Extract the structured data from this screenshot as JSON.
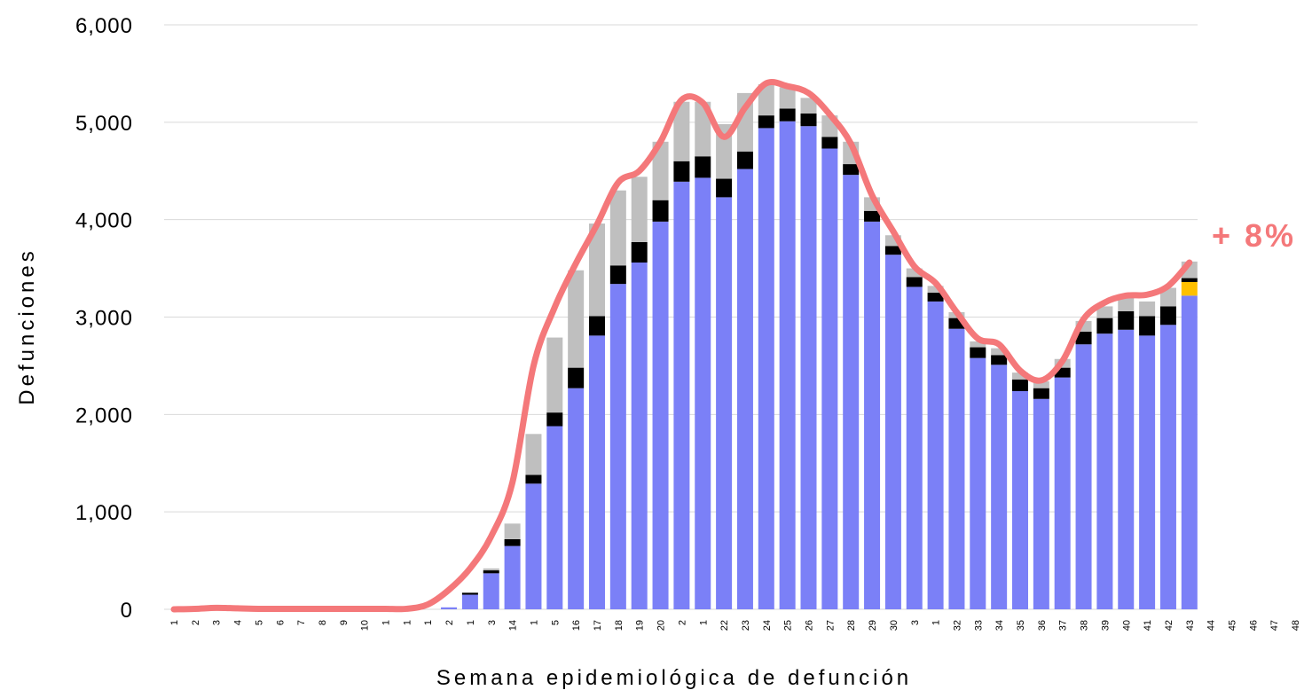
{
  "chart_data": {
    "type": "stacked_bar_line",
    "xlabel": "Semana epidemiológica de defunción",
    "ylabel": "Defunciones",
    "annotation": "+ 8%",
    "annotation_color": "#f4787a",
    "categories": [
      "1",
      "2",
      "3",
      "4",
      "5",
      "6",
      "7",
      "8",
      "9",
      "10",
      "1",
      "1",
      "1",
      "2",
      "1",
      "3",
      "14",
      "1",
      "5",
      "16",
      "17",
      "18",
      "19",
      "20",
      "2",
      "1",
      "22",
      "23",
      "24",
      "25",
      "26",
      "27",
      "28",
      "29",
      "30",
      "3",
      "1",
      "32",
      "33",
      "34",
      "35",
      "36",
      "37",
      "38",
      "39",
      "40",
      "41",
      "42",
      "43",
      "44",
      "45",
      "46",
      "47",
      "48"
    ],
    "ylim": [
      0,
      6000
    ],
    "yticks": [
      0,
      {
        "value": 1000,
        "label": "1,000"
      },
      {
        "value": 2000,
        "label": "2,000"
      },
      {
        "value": 3000,
        "label": "3,000"
      },
      {
        "value": 4000,
        "label": "4,000"
      },
      {
        "value": 5000,
        "label": "5,000"
      },
      {
        "value": 6000,
        "label": "6,000"
      }
    ],
    "grid": true,
    "series": [
      {
        "color": "#7b80f7",
        "values": [
          0,
          0,
          0,
          0,
          0,
          0,
          0,
          0,
          0,
          0,
          0,
          0,
          0,
          20,
          150,
          370,
          650,
          1290,
          1880,
          2270,
          2810,
          3340,
          3560,
          3980,
          4390,
          4430,
          4230,
          4520,
          4940,
          5010,
          4960,
          4730,
          4460,
          3980,
          3640,
          3310,
          3160,
          2880,
          2580,
          2510,
          2240,
          2160,
          2380,
          2720,
          2830,
          2870,
          2810,
          2920,
          3220,
          null,
          null,
          null,
          null,
          null
        ]
      },
      {
        "color": "#ffc000",
        "values": [
          0,
          0,
          0,
          0,
          0,
          0,
          0,
          0,
          0,
          0,
          0,
          0,
          0,
          0,
          0,
          0,
          0,
          0,
          0,
          0,
          0,
          0,
          0,
          0,
          0,
          0,
          0,
          0,
          0,
          0,
          0,
          0,
          0,
          0,
          0,
          0,
          0,
          0,
          0,
          0,
          0,
          0,
          0,
          0,
          0,
          0,
          0,
          0,
          140,
          null,
          null,
          null,
          null,
          null
        ]
      },
      {
        "color": "#000000",
        "values": [
          0,
          0,
          0,
          0,
          0,
          0,
          0,
          0,
          0,
          0,
          0,
          0,
          0,
          0,
          20,
          30,
          70,
          90,
          140,
          210,
          200,
          190,
          210,
          220,
          210,
          220,
          190,
          180,
          130,
          130,
          130,
          120,
          110,
          110,
          90,
          100,
          90,
          110,
          110,
          100,
          120,
          110,
          100,
          130,
          160,
          190,
          200,
          190,
          40,
          null,
          null,
          null,
          null,
          null
        ]
      },
      {
        "color": "#bfbfbf",
        "values": [
          0,
          0,
          0,
          0,
          0,
          0,
          0,
          0,
          0,
          0,
          0,
          0,
          0,
          0,
          0,
          20,
          160,
          420,
          770,
          1000,
          950,
          770,
          670,
          600,
          610,
          560,
          560,
          600,
          320,
          220,
          160,
          220,
          230,
          140,
          110,
          90,
          70,
          60,
          60,
          70,
          70,
          70,
          90,
          110,
          120,
          150,
          150,
          190,
          170,
          null,
          null,
          null,
          null,
          null
        ]
      }
    ],
    "line": {
      "color": "#f4787a",
      "values": [
        0,
        5,
        15,
        10,
        5,
        5,
        5,
        5,
        5,
        5,
        5,
        5,
        50,
        200,
        420,
        750,
        1300,
        2500,
        3100,
        3550,
        3950,
        4380,
        4500,
        4800,
        5230,
        5200,
        4850,
        5150,
        5400,
        5370,
        5300,
        5080,
        4780,
        4250,
        3880,
        3520,
        3350,
        3050,
        2780,
        2720,
        2450,
        2350,
        2550,
        2980,
        3150,
        3220,
        3230,
        3320,
        3560,
        null,
        null,
        null,
        null,
        null
      ]
    }
  }
}
